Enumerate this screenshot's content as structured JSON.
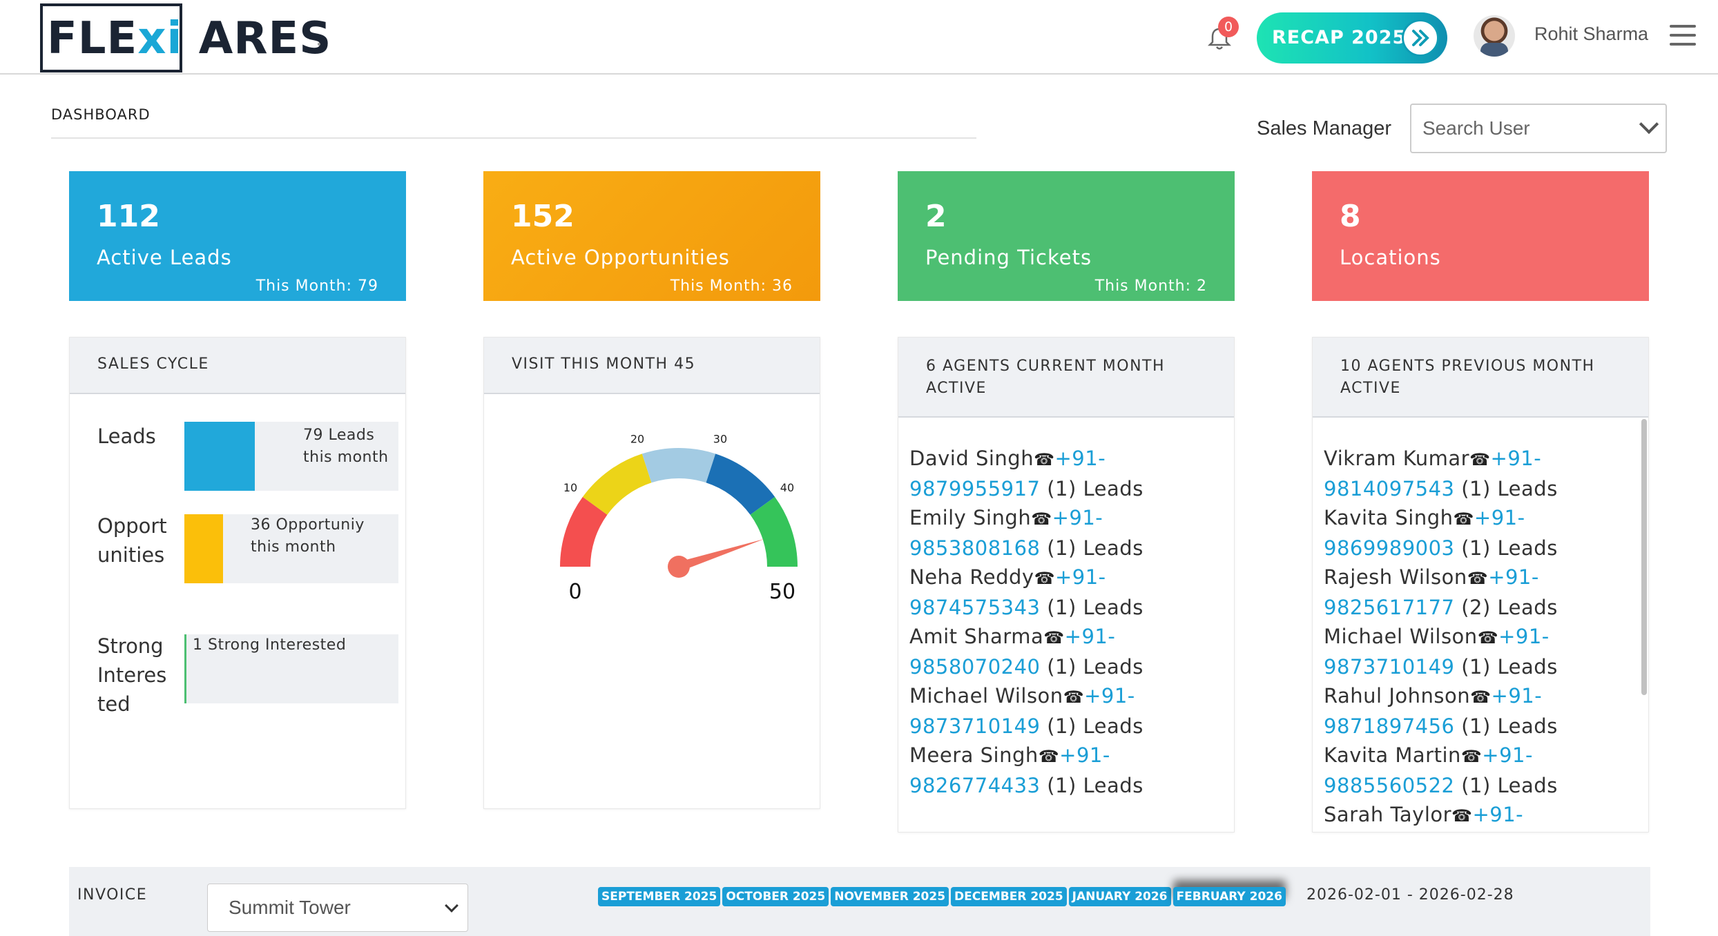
{
  "header": {
    "logo_left": "FLE",
    "logo_mid": "xi",
    "logo_right": " ARES",
    "notification_count": "0",
    "recap_label": "RECAP 2025",
    "user_name": "Rohit Sharma"
  },
  "dashboard": {
    "title": "DASHBOARD",
    "sales_manager_label": "Sales Manager",
    "search_user_placeholder": "Search User"
  },
  "stats": [
    {
      "value": "112",
      "label": "Active Leads",
      "month": "This Month: 79",
      "color": "#21a8da"
    },
    {
      "value": "152",
      "label": "Active Opportunities",
      "month": "This Month: 36",
      "color": "#f5a00f"
    },
    {
      "value": "2",
      "label": "Pending Tickets",
      "month": "This Month: 2",
      "color": "#4dbf72"
    },
    {
      "value": "8",
      "label": "Locations",
      "month": "",
      "color": "#f46b6b"
    }
  ],
  "sales_cycle": {
    "title": "SALES CYCLE",
    "rows": [
      {
        "label": "Leads",
        "text": "79 Leads this month",
        "fill_fraction": 0.33,
        "color": "#21a8da"
      },
      {
        "label": "Opportunities",
        "text": "36 Opportuniy this month",
        "fill_fraction": 0.18,
        "color": "#fbbf0a"
      },
      {
        "label": "Strong Interested",
        "text": "1 Strong Interested",
        "fill_fraction": 0.01,
        "color": "#4dbf72"
      }
    ]
  },
  "visits": {
    "title": "VISIT THIS MONTH 45",
    "gauge_min": "0",
    "gauge_max": "50",
    "gauge_value": 45,
    "ticks": [
      "10",
      "20",
      "30",
      "40"
    ],
    "segment_colors": [
      "#f44f4f",
      "#ecd418",
      "#a3cbe3",
      "#1b70b5",
      "#35c45a"
    ],
    "needle_color": "#f07060"
  },
  "current_agents": {
    "title_line1": "6 AGENTS CURRENT MONTH",
    "title_line2": "ACTIVE",
    "agents": [
      {
        "name": "David Singh",
        "phone": "+91-9879955917",
        "leads": "(1) Leads"
      },
      {
        "name": "Emily Singh",
        "phone": "+91-9853808168",
        "leads": "(1) Leads"
      },
      {
        "name": "Neha Reddy",
        "phone": "+91-9874575343",
        "leads": "(1) Leads"
      },
      {
        "name": "Amit Sharma",
        "phone": "+91-9858070240",
        "leads": "(1) Leads"
      },
      {
        "name": "Michael Wilson",
        "phone": "+91-9873710149",
        "leads": "(1) Leads"
      },
      {
        "name": "Meera Singh",
        "phone": "+91-9826774433",
        "leads": "(1) Leads"
      }
    ]
  },
  "previous_agents": {
    "title_line1": "10 AGENTS PREVIOUS MONTH",
    "title_line2": "ACTIVE",
    "agents": [
      {
        "name": "Vikram Kumar",
        "phone": "+91-9814097543",
        "leads": "(1) Leads"
      },
      {
        "name": "Kavita Singh",
        "phone": "+91-9869989003",
        "leads": "(1) Leads"
      },
      {
        "name": "Rajesh Wilson",
        "phone": "+91-9825617177",
        "leads": "(2) Leads"
      },
      {
        "name": "Michael Wilson",
        "phone": "+91-9873710149",
        "leads": "(1) Leads"
      },
      {
        "name": "Rahul Johnson",
        "phone": "+91-9871897456",
        "leads": "(1) Leads"
      },
      {
        "name": "Kavita Martin",
        "phone": "+91-9885560522",
        "leads": "(1) Leads"
      },
      {
        "name": "Sarah Taylor",
        "phone": "+91-",
        "leads": ""
      }
    ]
  },
  "invoice": {
    "label": "INVOICE",
    "location_selected": "Summit Tower",
    "months": [
      "SEPTEMBER 2025",
      "OCTOBER 2025",
      "NOVEMBER 2025",
      "DECEMBER 2025",
      "JANUARY 2026",
      "FEBRUARY 2026"
    ],
    "active_month": "FEBRUARY 2026",
    "date_range": "2026-02-01 - 2026-02-28"
  }
}
